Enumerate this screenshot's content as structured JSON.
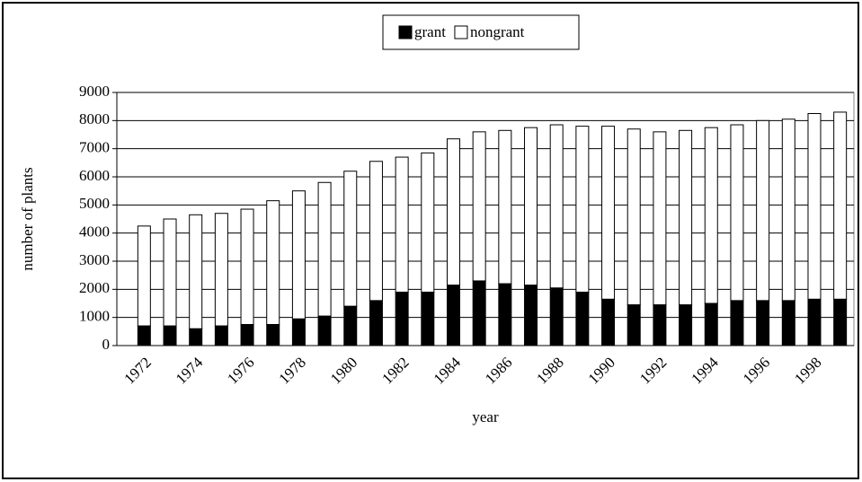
{
  "chart_data": {
    "type": "stacked_bar",
    "x_label": "year",
    "y_label": "number of plants",
    "categories": [
      "1972",
      null,
      "1974",
      null,
      "1976",
      null,
      "1978",
      null,
      "1980",
      null,
      "1982",
      null,
      "1984",
      null,
      "1986",
      null,
      "1988",
      null,
      "1990",
      null,
      "1992",
      null,
      "1994",
      null,
      "1996",
      null,
      "1998",
      null
    ],
    "series": [
      {
        "name": "grant",
        "color": "#000000",
        "values": [
          700,
          700,
          600,
          700,
          750,
          750,
          950,
          1050,
          1400,
          1600,
          1900,
          1900,
          2150,
          2300,
          2200,
          2150,
          2050,
          1900,
          1650,
          1450,
          1450,
          1450,
          1500,
          1600,
          1600,
          1600,
          1650,
          1650
        ]
      },
      {
        "name": "nongrant",
        "color": "#ffffff",
        "values": [
          3550,
          3800,
          4050,
          4000,
          4100,
          4400,
          4550,
          4750,
          4800,
          4950,
          4800,
          4950,
          5200,
          5300,
          5450,
          5600,
          5800,
          5900,
          6150,
          6250,
          6150,
          6200,
          6250,
          6250,
          6400,
          6450,
          6600,
          6650
        ]
      }
    ],
    "ylim": [
      0,
      9000
    ],
    "yticks": [
      0,
      1000,
      2000,
      3000,
      4000,
      5000,
      6000,
      7000,
      8000,
      9000
    ],
    "grid": true,
    "legend": "top"
  }
}
